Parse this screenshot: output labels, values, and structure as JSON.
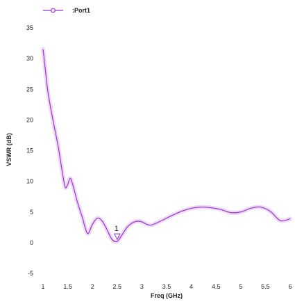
{
  "chart_data": {
    "type": "line",
    "title": "",
    "xlabel": "Freq (GHz)",
    "ylabel": "VSWR (dB)",
    "xlim": [
      1,
      6
    ],
    "ylim": [
      -5,
      35
    ],
    "x_ticks": [
      "1",
      "1.5",
      "2",
      "2.5",
      "3",
      "3.5",
      "4",
      "4.5",
      "5",
      "5.5",
      "6"
    ],
    "y_ticks": [
      "35",
      "30",
      "25",
      "20",
      "15",
      "10",
      "5",
      "0",
      "-5"
    ],
    "grid": false,
    "legend_position": "top",
    "series": [
      {
        "name": ":Port1",
        "color": "#9933cc",
        "x": [
          1.0,
          1.05,
          1.1,
          1.2,
          1.3,
          1.35,
          1.4,
          1.45,
          1.5,
          1.55,
          1.6,
          1.65,
          1.7,
          1.8,
          1.9,
          2.0,
          2.1,
          2.2,
          2.3,
          2.4,
          2.5,
          2.6,
          2.7,
          2.8,
          2.9,
          3.0,
          3.1,
          3.2,
          3.4,
          3.6,
          3.8,
          4.0,
          4.2,
          4.4,
          4.6,
          4.8,
          5.0,
          5.2,
          5.4,
          5.6,
          5.8,
          6.0
        ],
        "values": [
          31.5,
          28.0,
          24.5,
          20.0,
          16.0,
          13.5,
          11.0,
          9.0,
          9.5,
          10.5,
          9.5,
          8.0,
          6.5,
          4.0,
          1.5,
          3.0,
          4.0,
          3.5,
          2.0,
          0.5,
          0.2,
          1.3,
          2.5,
          3.2,
          3.5,
          3.4,
          3.0,
          2.9,
          3.6,
          4.4,
          5.1,
          5.6,
          5.8,
          5.7,
          5.4,
          4.9,
          5.0,
          5.6,
          5.8,
          5.1,
          3.6,
          3.9
        ]
      }
    ],
    "annotations": [
      {
        "label": "1",
        "x": 2.5,
        "y": 0.2,
        "color": "#9933cc"
      }
    ]
  }
}
